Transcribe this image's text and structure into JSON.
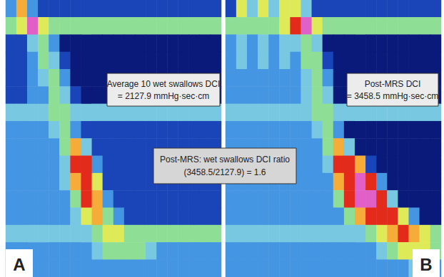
{
  "chart_data": [
    {
      "type": "heatmap",
      "panel_label": "A",
      "annotation": [
        "Average 10 wet swallows DCI",
        "= 2127.9 mmHg·sec·cm"
      ],
      "zlim": [
        0,
        150
      ],
      "tick_labels": false,
      "cells": [
        [
          35,
          110,
          35,
          15,
          15,
          15,
          15,
          15,
          15,
          15,
          15,
          15,
          15,
          15,
          15,
          15,
          15,
          15,
          15,
          15
        ],
        [
          70,
          90,
          150,
          90,
          70,
          70,
          70,
          70,
          70,
          70,
          70,
          70,
          70,
          70,
          70,
          70,
          70,
          70,
          70,
          70
        ],
        [
          15,
          15,
          50,
          70,
          35,
          0,
          0,
          0,
          0,
          0,
          0,
          0,
          0,
          0,
          0,
          0,
          0,
          0,
          0,
          0
        ],
        [
          15,
          15,
          35,
          70,
          50,
          15,
          0,
          0,
          0,
          0,
          0,
          0,
          0,
          0,
          0,
          0,
          0,
          0,
          0,
          0
        ],
        [
          15,
          15,
          35,
          50,
          70,
          35,
          0,
          0,
          0,
          0,
          0,
          0,
          0,
          0,
          0,
          0,
          0,
          0,
          0,
          0
        ],
        [
          15,
          15,
          35,
          35,
          70,
          50,
          15,
          0,
          0,
          0,
          0,
          0,
          0,
          0,
          0,
          0,
          0,
          0,
          0,
          0
        ],
        [
          50,
          50,
          50,
          50,
          70,
          70,
          50,
          50,
          50,
          50,
          50,
          50,
          50,
          50,
          50,
          50,
          50,
          50,
          50,
          50
        ],
        [
          35,
          35,
          35,
          35,
          50,
          70,
          35,
          15,
          15,
          15,
          15,
          15,
          15,
          15,
          15,
          15,
          15,
          15,
          15,
          15
        ],
        [
          35,
          35,
          35,
          35,
          35,
          70,
          110,
          50,
          15,
          15,
          15,
          15,
          15,
          15,
          15,
          15,
          15,
          15,
          15,
          15
        ],
        [
          35,
          35,
          35,
          35,
          35,
          50,
          130,
          130,
          35,
          15,
          15,
          15,
          15,
          15,
          15,
          15,
          15,
          15,
          15,
          15
        ],
        [
          35,
          35,
          35,
          35,
          35,
          50,
          110,
          130,
          90,
          15,
          15,
          15,
          15,
          15,
          15,
          15,
          15,
          15,
          15,
          15
        ],
        [
          35,
          35,
          35,
          35,
          35,
          35,
          70,
          130,
          110,
          35,
          15,
          15,
          15,
          15,
          15,
          15,
          15,
          15,
          15,
          15
        ],
        [
          35,
          35,
          35,
          35,
          35,
          35,
          50,
          90,
          110,
          70,
          35,
          15,
          15,
          15,
          15,
          15,
          15,
          15,
          15,
          15
        ],
        [
          50,
          50,
          50,
          50,
          50,
          50,
          50,
          50,
          70,
          90,
          90,
          70,
          70,
          70,
          70,
          70,
          70,
          70,
          70,
          70
        ],
        [
          35,
          35,
          35,
          35,
          35,
          35,
          35,
          35,
          50,
          70,
          70,
          70,
          70,
          50,
          35,
          35,
          35,
          35,
          35,
          35
        ],
        [
          35,
          35,
          35,
          35,
          35,
          35,
          35,
          35,
          35,
          35,
          35,
          35,
          35,
          35,
          35,
          35,
          35,
          35,
          35,
          35
        ]
      ]
    },
    {
      "type": "heatmap",
      "panel_label": "B",
      "annotation": [
        "Post-MRS DCI",
        "= 3458.5 mmHg·sec·cm"
      ],
      "zlim": [
        0,
        150
      ],
      "tick_labels": false,
      "cells": [
        [
          15,
          90,
          50,
          90,
          50,
          90,
          90,
          50,
          15,
          15,
          15,
          15,
          15,
          15,
          15,
          15,
          15,
          15,
          15,
          15
        ],
        [
          70,
          70,
          70,
          70,
          70,
          90,
          130,
          150,
          90,
          70,
          70,
          70,
          70,
          70,
          70,
          70,
          70,
          70,
          70,
          70
        ],
        [
          35,
          50,
          35,
          50,
          35,
          50,
          50,
          70,
          50,
          0,
          0,
          0,
          0,
          0,
          0,
          0,
          0,
          0,
          0,
          0
        ],
        [
          35,
          50,
          35,
          50,
          35,
          50,
          35,
          70,
          70,
          15,
          0,
          0,
          0,
          0,
          0,
          0,
          0,
          0,
          0,
          0
        ],
        [
          35,
          35,
          35,
          35,
          35,
          35,
          35,
          50,
          70,
          35,
          0,
          0,
          0,
          0,
          0,
          0,
          0,
          0,
          0,
          0
        ],
        [
          35,
          35,
          35,
          35,
          35,
          35,
          35,
          50,
          70,
          50,
          0,
          0,
          0,
          0,
          0,
          0,
          0,
          0,
          0,
          0
        ],
        [
          50,
          50,
          50,
          50,
          50,
          50,
          50,
          50,
          70,
          70,
          50,
          50,
          50,
          50,
          50,
          50,
          50,
          50,
          50,
          50
        ],
        [
          35,
          35,
          35,
          35,
          35,
          35,
          35,
          35,
          50,
          70,
          35,
          0,
          0,
          0,
          0,
          0,
          0,
          0,
          0,
          0
        ],
        [
          35,
          35,
          35,
          35,
          35,
          35,
          35,
          35,
          35,
          70,
          110,
          50,
          0,
          0,
          0,
          0,
          0,
          0,
          0,
          0
        ],
        [
          35,
          35,
          35,
          35,
          35,
          35,
          35,
          35,
          35,
          50,
          130,
          130,
          110,
          15,
          0,
          0,
          0,
          0,
          0,
          0
        ],
        [
          35,
          35,
          35,
          35,
          35,
          35,
          35,
          35,
          35,
          35,
          110,
          130,
          150,
          130,
          35,
          0,
          0,
          0,
          0,
          0
        ],
        [
          35,
          35,
          35,
          35,
          35,
          35,
          35,
          35,
          35,
          35,
          70,
          130,
          150,
          150,
          130,
          50,
          0,
          0,
          0,
          0
        ],
        [
          35,
          35,
          35,
          35,
          35,
          35,
          35,
          35,
          35,
          35,
          35,
          70,
          110,
          130,
          130,
          130,
          90,
          35,
          0,
          0
        ],
        [
          50,
          50,
          50,
          50,
          50,
          50,
          50,
          50,
          50,
          50,
          50,
          50,
          50,
          70,
          90,
          110,
          130,
          110,
          90,
          70
        ],
        [
          35,
          35,
          35,
          35,
          35,
          35,
          35,
          35,
          35,
          35,
          35,
          35,
          35,
          35,
          50,
          70,
          90,
          90,
          90,
          70
        ],
        [
          35,
          35,
          35,
          35,
          35,
          35,
          35,
          35,
          35,
          35,
          35,
          35,
          35,
          35,
          35,
          35,
          35,
          50,
          50,
          35
        ]
      ]
    }
  ],
  "shared_annotation": [
    "Post-MRS: wet swallows DCI ratio",
    "(3458.5/2127.9) = 1.6"
  ]
}
